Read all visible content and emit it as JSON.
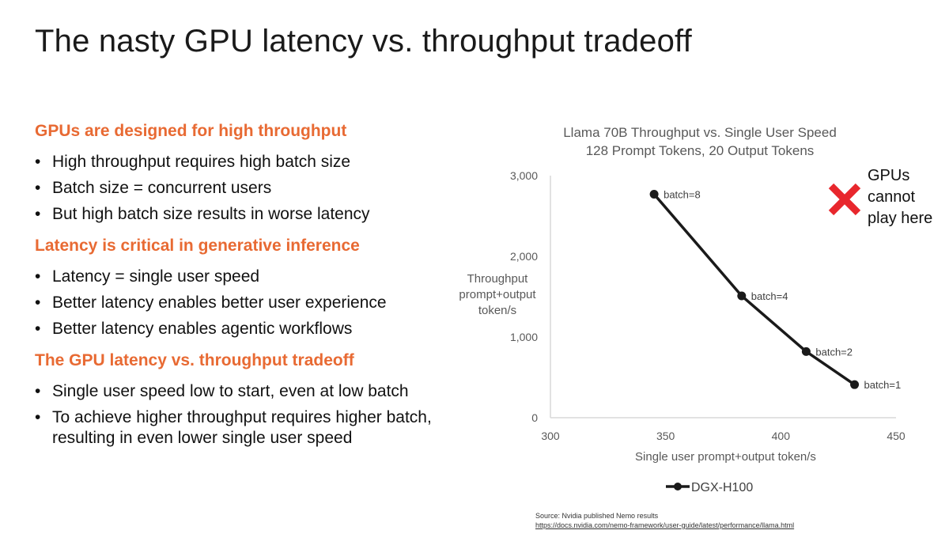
{
  "slide": {
    "title": "The nasty GPU latency vs. throughput tradeoff"
  },
  "sections": [
    {
      "heading": "GPUs are designed for high throughput",
      "bullets": [
        "High throughput requires high batch size",
        "Batch size = concurrent users",
        "But high batch size results in worse latency"
      ]
    },
    {
      "heading": "Latency is critical in generative inference",
      "bullets": [
        "Latency = single user speed",
        "Better latency enables better user experience",
        "Better latency enables agentic workflows"
      ]
    },
    {
      "heading": "The GPU latency vs. throughput tradeoff",
      "bullets": [
        "Single user speed low to start, even at low batch",
        "To achieve higher throughput requires higher batch, resulting in even lower single user speed"
      ]
    }
  ],
  "chart_data": {
    "type": "line",
    "title": [
      "Llama 70B Throughput vs. Single User Speed",
      "128 Prompt Tokens,  20 Output Tokens"
    ],
    "xlabel": "Single user prompt+output token/s",
    "ylabel": [
      "Throughput",
      "prompt+output",
      "token/s"
    ],
    "xlim": [
      300,
      450
    ],
    "ylim": [
      0,
      3000
    ],
    "xticks": [
      300,
      350,
      400,
      450
    ],
    "xtick_labels": [
      "300",
      "350",
      "400",
      "450"
    ],
    "yticks": [
      0,
      1000,
      2000,
      3000
    ],
    "ytick_labels": [
      "0",
      "1,000",
      "2,000",
      "3,000"
    ],
    "grid": false,
    "legend_position": "bottom",
    "series": [
      {
        "name": "DGX-H100",
        "color": "#1a1a1a",
        "x": [
          345,
          383,
          411,
          432
        ],
        "y": [
          2770,
          1510,
          820,
          410
        ],
        "point_labels": [
          "batch=8",
          "batch=4",
          "batch=2",
          "batch=1"
        ]
      }
    ],
    "annotation": {
      "icon": "red-x-icon",
      "color": "#e8272d",
      "lines": [
        "GPUs",
        "cannot",
        "play here"
      ]
    }
  },
  "source": {
    "label": "Source: Nvidia published Nemo results",
    "url": "https://docs.nvidia.com/nemo-framework/user-guide/latest/performance/llama.html"
  }
}
